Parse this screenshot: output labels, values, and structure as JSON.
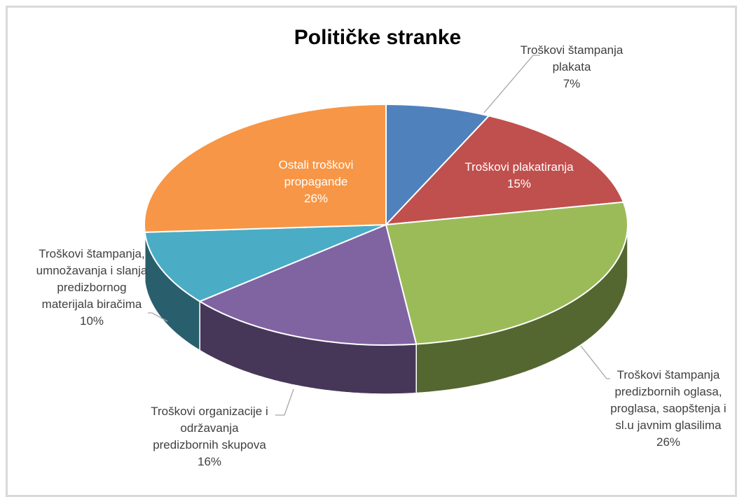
{
  "chart_data": {
    "type": "pie",
    "variant": "3d",
    "title": "Političke stranke",
    "slices": [
      {
        "label": "Troškovi štampanja plakata",
        "value": 7,
        "value_label": "7%",
        "color": "#4f81bd"
      },
      {
        "label": "Troškovi plakatiranja",
        "value": 15,
        "value_label": "15%",
        "color": "#c0504d"
      },
      {
        "label": "Troškovi štampanja predizbornih oglasa, proglasa, saopštenja i sl.u javnim glasilima",
        "value": 26,
        "value_label": "26%",
        "color": "#9bbb59"
      },
      {
        "label": "Troškovi organizacije i održavanja predizbornih skupova",
        "value": 16,
        "value_label": "16%",
        "color": "#8064a2"
      },
      {
        "label": "Troškovi štampanja, umnožavanja i slanja predizbornog materijala biračima",
        "value": 10,
        "value_label": "10%",
        "color": "#4bacc6"
      },
      {
        "label": "Ostali troškovi propagande",
        "value": 26,
        "value_label": "26%",
        "color": "#f79646"
      }
    ]
  }
}
